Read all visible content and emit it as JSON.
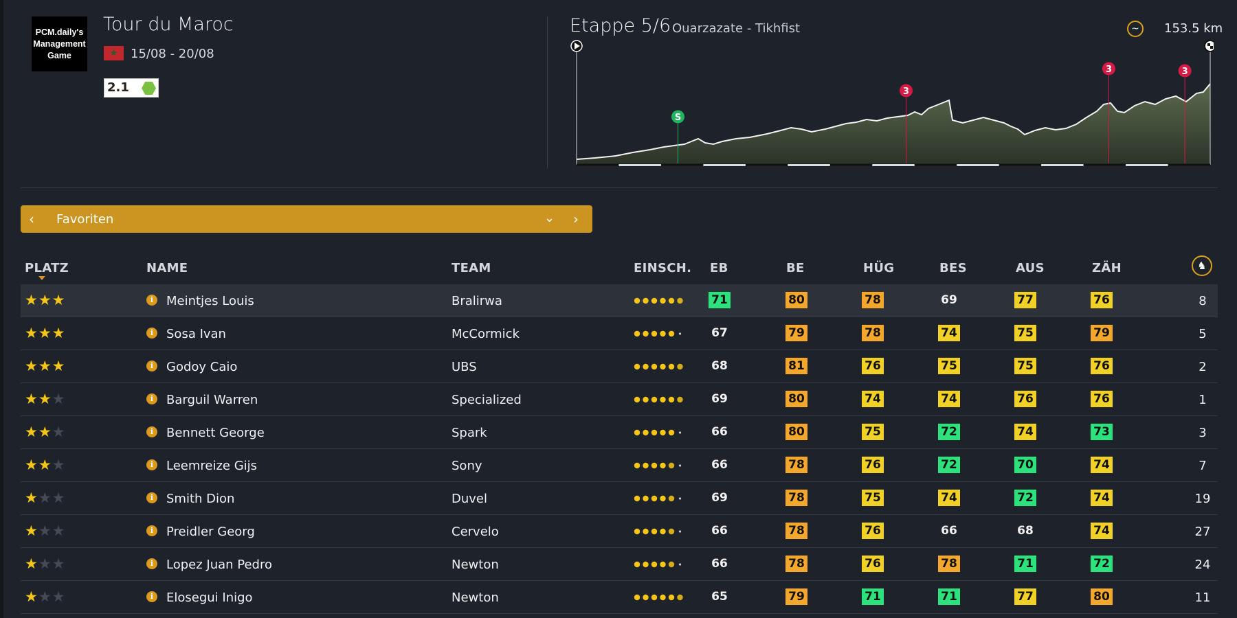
{
  "header": {
    "logo_text": "PCM.daily's\nManagement\nGame",
    "race_title": "Tour du Maroc",
    "flag_icon": "morocco-flag-icon",
    "dates": "15/08 - 20/08",
    "race_class": "2.1",
    "stage_title": "Etappe 5/6",
    "stage_route": "Ouarzazate - Tikhfist",
    "stage_type_icon": "hilly-stage-icon",
    "distance": "153.5 km",
    "profile_markers": [
      {
        "label": "S",
        "type": "sprint",
        "color": "#22b35e",
        "pos": 0.16
      },
      {
        "label": "3",
        "type": "climb",
        "color": "#d61a45",
        "pos": 0.52
      },
      {
        "label": "3",
        "type": "climb",
        "color": "#d61a45",
        "pos": 0.84
      },
      {
        "label": "3",
        "type": "climb",
        "color": "#d61a45",
        "pos": 0.96
      }
    ]
  },
  "category_bar": {
    "label": "Favoriten",
    "color": "#cc9522"
  },
  "table": {
    "columns": {
      "platz": "PLATZ",
      "name": "NAME",
      "team": "TEAM",
      "einsch": "EINSCH.",
      "eb": "EB",
      "be": "BE",
      "hug": "HÜG",
      "bes": "BES",
      "aus": "AUS",
      "zah": "ZÄH"
    },
    "last_column_icon": "sprinter-icon",
    "colors": {
      "green": "#2ce27d",
      "yellow": "#f2d126",
      "orange": "#f4a72a"
    },
    "rows": [
      {
        "stars": 3,
        "name": "Meintjes Louis",
        "team": "Bralirwa",
        "form": 5.5,
        "eb": [
          "71",
          "green"
        ],
        "be": [
          "80",
          "orange"
        ],
        "hug": [
          "78",
          "orange"
        ],
        "bes": [
          "69",
          ""
        ],
        "aus": [
          "77",
          "yellow"
        ],
        "zah": [
          "76",
          "yellow"
        ],
        "fav": "8"
      },
      {
        "stars": 3,
        "name": "Sosa Ivan",
        "team": "McCormick",
        "form": 5.0,
        "eb": [
          "67",
          ""
        ],
        "be": [
          "79",
          "orange"
        ],
        "hug": [
          "78",
          "orange"
        ],
        "bes": [
          "74",
          "yellow"
        ],
        "aus": [
          "75",
          "yellow"
        ],
        "zah": [
          "79",
          "orange"
        ],
        "fav": "5"
      },
      {
        "stars": 3,
        "name": "Godoy Caio",
        "team": "UBS",
        "form": 5.5,
        "eb": [
          "68",
          ""
        ],
        "be": [
          "81",
          "orange"
        ],
        "hug": [
          "76",
          "yellow"
        ],
        "bes": [
          "75",
          "yellow"
        ],
        "aus": [
          "75",
          "yellow"
        ],
        "zah": [
          "76",
          "yellow"
        ],
        "fav": "2"
      },
      {
        "stars": 2,
        "name": "Barguil Warren",
        "team": "Specialized",
        "form": 5.5,
        "eb": [
          "69",
          ""
        ],
        "be": [
          "80",
          "orange"
        ],
        "hug": [
          "74",
          "yellow"
        ],
        "bes": [
          "74",
          "yellow"
        ],
        "aus": [
          "76",
          "yellow"
        ],
        "zah": [
          "76",
          "yellow"
        ],
        "fav": "1"
      },
      {
        "stars": 2,
        "name": "Bennett George",
        "team": "Spark",
        "form": 5.0,
        "eb": [
          "66",
          ""
        ],
        "be": [
          "80",
          "orange"
        ],
        "hug": [
          "75",
          "yellow"
        ],
        "bes": [
          "72",
          "green"
        ],
        "aus": [
          "74",
          "yellow"
        ],
        "zah": [
          "73",
          "green"
        ],
        "fav": "3"
      },
      {
        "stars": 2,
        "name": "Leemreize Gijs",
        "team": "Sony",
        "form": 4.5,
        "eb": [
          "66",
          ""
        ],
        "be": [
          "78",
          "orange"
        ],
        "hug": [
          "76",
          "yellow"
        ],
        "bes": [
          "72",
          "green"
        ],
        "aus": [
          "70",
          "green"
        ],
        "zah": [
          "74",
          "yellow"
        ],
        "fav": "7"
      },
      {
        "stars": 1,
        "name": "Smith Dion",
        "team": "Duvel",
        "form": 4.5,
        "eb": [
          "69",
          ""
        ],
        "be": [
          "78",
          "orange"
        ],
        "hug": [
          "75",
          "yellow"
        ],
        "bes": [
          "74",
          "yellow"
        ],
        "aus": [
          "72",
          "green"
        ],
        "zah": [
          "74",
          "yellow"
        ],
        "fav": "19"
      },
      {
        "stars": 1,
        "name": "Preidler Georg",
        "team": "Cervelo",
        "form": 4.5,
        "eb": [
          "66",
          ""
        ],
        "be": [
          "78",
          "orange"
        ],
        "hug": [
          "76",
          "yellow"
        ],
        "bes": [
          "66",
          ""
        ],
        "aus": [
          "68",
          ""
        ],
        "zah": [
          "74",
          "yellow"
        ],
        "fav": "27"
      },
      {
        "stars": 1,
        "name": "Lopez Juan Pedro",
        "team": "Newton",
        "form": 4.5,
        "eb": [
          "66",
          ""
        ],
        "be": [
          "78",
          "orange"
        ],
        "hug": [
          "76",
          "yellow"
        ],
        "bes": [
          "78",
          "orange"
        ],
        "aus": [
          "71",
          "green"
        ],
        "zah": [
          "72",
          "green"
        ],
        "fav": "24"
      },
      {
        "stars": 1,
        "name": "Elosegui Inigo",
        "team": "Newton",
        "form": 5.5,
        "eb": [
          "65",
          ""
        ],
        "be": [
          "79",
          "orange"
        ],
        "hug": [
          "71",
          "green"
        ],
        "bes": [
          "71",
          "green"
        ],
        "aus": [
          "77",
          "yellow"
        ],
        "zah": [
          "80",
          "orange"
        ],
        "fav": "11"
      }
    ]
  }
}
